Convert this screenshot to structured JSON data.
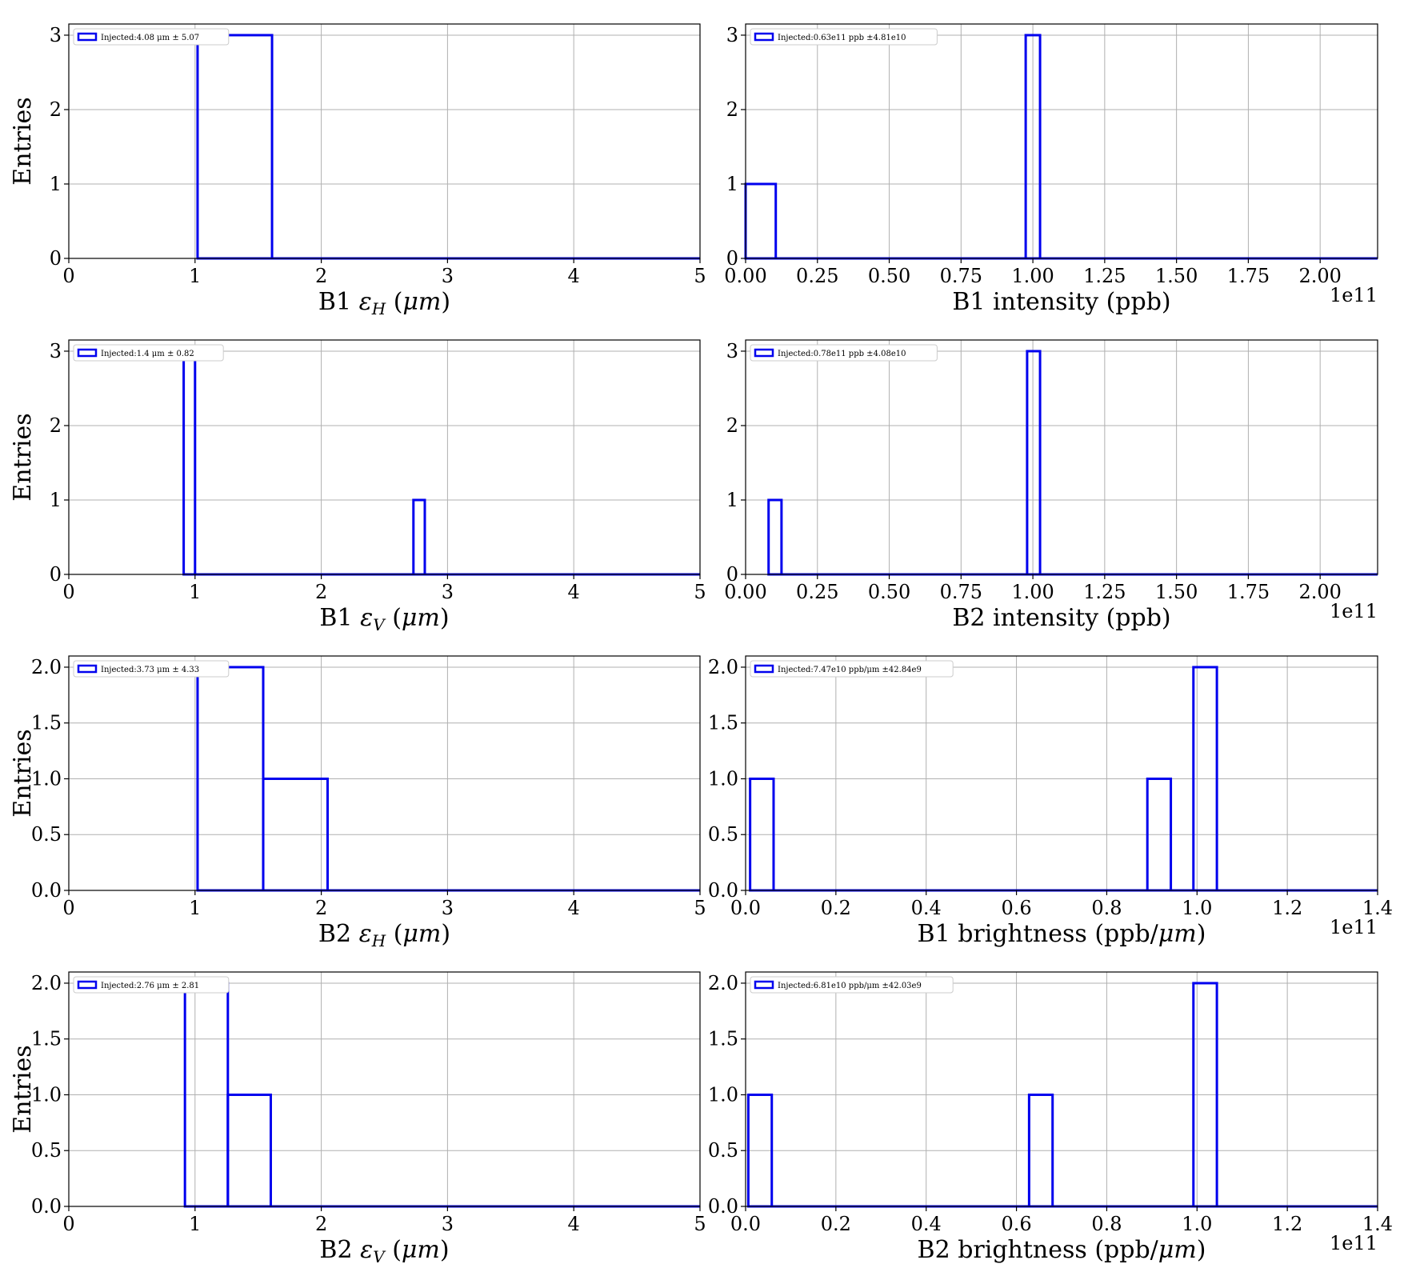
{
  "figure": {
    "colors": {
      "series": "#0000ee",
      "grid": "#b0b0b0",
      "axis": "#000000"
    },
    "grid": true,
    "legend_placement": "upper-left"
  },
  "chart_data": [
    {
      "type": "bar",
      "histogram": true,
      "xlabel": "B1 εH (μm)",
      "xlabel_parts": {
        "pre": "B1 ",
        "sym": "ε",
        "sub": "H",
        "post": " (",
        "unit": "μm",
        "close": ")"
      },
      "ylabel": "Entries",
      "xlim": [
        0,
        5
      ],
      "ylim": [
        0,
        3.15
      ],
      "xticks": [
        0,
        1,
        2,
        3,
        4,
        5
      ],
      "xtick_labels": [
        "0",
        "1",
        "2",
        "3",
        "4",
        "5"
      ],
      "yticks": [
        0,
        1,
        2,
        3
      ],
      "ytick_labels": [
        "0",
        "1",
        "2",
        "3"
      ],
      "offset_text": "",
      "legend": "Injected:4.08 μm ± 5.07",
      "bins": [
        {
          "start": 1.02,
          "end": 1.61,
          "value": 3
        }
      ]
    },
    {
      "type": "bar",
      "histogram": true,
      "xlabel": "B1 intensity (ppb)",
      "ylabel": "",
      "xlim": [
        0,
        2.2
      ],
      "ylim": [
        0,
        3.15
      ],
      "xticks": [
        0,
        0.25,
        0.5,
        0.75,
        1.0,
        1.25,
        1.5,
        1.75,
        2.0
      ],
      "xtick_labels": [
        "0.00",
        "0.25",
        "0.50",
        "0.75",
        "1.00",
        "1.25",
        "1.50",
        "1.75",
        "2.00"
      ],
      "yticks": [
        0,
        1,
        2,
        3
      ],
      "ytick_labels": [
        "0",
        "1",
        "2",
        "3"
      ],
      "offset_text": "1e11",
      "legend": "Injected:0.63e11 ppb ±4.81e10",
      "bins": [
        {
          "start": 0.0,
          "end": 0.105,
          "value": 1
        },
        {
          "start": 0.975,
          "end": 1.025,
          "value": 3
        }
      ]
    },
    {
      "type": "bar",
      "histogram": true,
      "xlabel": "B1 εV (μm)",
      "xlabel_parts": {
        "pre": "B1 ",
        "sym": "ε",
        "sub": "V",
        "post": " (",
        "unit": "μm",
        "close": ")"
      },
      "ylabel": "Entries",
      "xlim": [
        0,
        5
      ],
      "ylim": [
        0,
        3.15
      ],
      "xticks": [
        0,
        1,
        2,
        3,
        4,
        5
      ],
      "xtick_labels": [
        "0",
        "1",
        "2",
        "3",
        "4",
        "5"
      ],
      "yticks": [
        0,
        1,
        2,
        3
      ],
      "ytick_labels": [
        "0",
        "1",
        "2",
        "3"
      ],
      "offset_text": "",
      "legend": "Injected:1.4 μm ± 0.82",
      "bins": [
        {
          "start": 0.91,
          "end": 1.0,
          "value": 3
        },
        {
          "start": 2.73,
          "end": 2.82,
          "value": 1
        }
      ]
    },
    {
      "type": "bar",
      "histogram": true,
      "xlabel": "B2 intensity (ppb)",
      "ylabel": "",
      "xlim": [
        0,
        2.2
      ],
      "ylim": [
        0,
        3.15
      ],
      "xticks": [
        0,
        0.25,
        0.5,
        0.75,
        1.0,
        1.25,
        1.5,
        1.75,
        2.0
      ],
      "xtick_labels": [
        "0.00",
        "0.25",
        "0.50",
        "0.75",
        "1.00",
        "1.25",
        "1.50",
        "1.75",
        "2.00"
      ],
      "yticks": [
        0,
        1,
        2,
        3
      ],
      "ytick_labels": [
        "0",
        "1",
        "2",
        "3"
      ],
      "offset_text": "1e11",
      "legend": "Injected:0.78e11 ppb ±4.08e10",
      "bins": [
        {
          "start": 0.08,
          "end": 0.125,
          "value": 1
        },
        {
          "start": 0.98,
          "end": 1.025,
          "value": 3
        }
      ]
    },
    {
      "type": "bar",
      "histogram": true,
      "xlabel": "B2 εH (μm)",
      "xlabel_parts": {
        "pre": "B2 ",
        "sym": "ε",
        "sub": "H",
        "post": " (",
        "unit": "μm",
        "close": ")"
      },
      "ylabel": "Entries",
      "xlim": [
        0,
        5
      ],
      "ylim": [
        0,
        2.1
      ],
      "xticks": [
        0,
        1,
        2,
        3,
        4,
        5
      ],
      "xtick_labels": [
        "0",
        "1",
        "2",
        "3",
        "4",
        "5"
      ],
      "yticks": [
        0,
        0.5,
        1.0,
        1.5,
        2.0
      ],
      "ytick_labels": [
        "0.0",
        "0.5",
        "1.0",
        "1.5",
        "2.0"
      ],
      "offset_text": "",
      "legend": "Injected:3.73 μm ± 4.33",
      "bins": [
        {
          "start": 1.02,
          "end": 1.54,
          "value": 2
        },
        {
          "start": 1.54,
          "end": 2.05,
          "value": 1
        }
      ]
    },
    {
      "type": "bar",
      "histogram": true,
      "xlabel": "B1 brightness (ppb/μm)",
      "xlabel_parts": {
        "pre": "B1 brightness (ppb/",
        "sym": "",
        "sub": "",
        "post": "",
        "unit": "μm",
        "close": ")"
      },
      "ylabel": "",
      "xlim": [
        0,
        1.4
      ],
      "ylim": [
        0,
        2.1
      ],
      "xticks": [
        0,
        0.2,
        0.4,
        0.6,
        0.8,
        1.0,
        1.2,
        1.4
      ],
      "xtick_labels": [
        "0.0",
        "0.2",
        "0.4",
        "0.6",
        "0.8",
        "1.0",
        "1.2",
        "1.4"
      ],
      "yticks": [
        0,
        0.5,
        1.0,
        1.5,
        2.0
      ],
      "ytick_labels": [
        "0.0",
        "0.5",
        "1.0",
        "1.5",
        "2.0"
      ],
      "offset_text": "1e11",
      "legend": "Injected:7.47e10 ppb/μm ±42.84e9",
      "bins": [
        {
          "start": 0.01,
          "end": 0.062,
          "value": 1
        },
        {
          "start": 0.89,
          "end": 0.942,
          "value": 1
        },
        {
          "start": 0.992,
          "end": 1.044,
          "value": 2
        }
      ]
    },
    {
      "type": "bar",
      "histogram": true,
      "xlabel": "B2 εV (μm)",
      "xlabel_parts": {
        "pre": "B2 ",
        "sym": "ε",
        "sub": "V",
        "post": " (",
        "unit": "μm",
        "close": ")"
      },
      "ylabel": "Entries",
      "xlim": [
        0,
        5
      ],
      "ylim": [
        0,
        2.1
      ],
      "xticks": [
        0,
        1,
        2,
        3,
        4,
        5
      ],
      "xtick_labels": [
        "0",
        "1",
        "2",
        "3",
        "4",
        "5"
      ],
      "yticks": [
        0,
        0.5,
        1.0,
        1.5,
        2.0
      ],
      "ytick_labels": [
        "0.0",
        "0.5",
        "1.0",
        "1.5",
        "2.0"
      ],
      "offset_text": "",
      "legend": "Injected:2.76 μm ± 2.81",
      "bins": [
        {
          "start": 0.92,
          "end": 1.26,
          "value": 2
        },
        {
          "start": 1.26,
          "end": 1.6,
          "value": 1
        }
      ]
    },
    {
      "type": "bar",
      "histogram": true,
      "xlabel": "B2 brightness (ppb/μm)",
      "xlabel_parts": {
        "pre": "B2 brightness (ppb/",
        "sym": "",
        "sub": "",
        "post": "",
        "unit": "μm",
        "close": ")"
      },
      "ylabel": "",
      "xlim": [
        0,
        1.4
      ],
      "ylim": [
        0,
        2.1
      ],
      "xticks": [
        0,
        0.2,
        0.4,
        0.6,
        0.8,
        1.0,
        1.2,
        1.4
      ],
      "xtick_labels": [
        "0.0",
        "0.2",
        "0.4",
        "0.6",
        "0.8",
        "1.0",
        "1.2",
        "1.4"
      ],
      "yticks": [
        0,
        0.5,
        1.0,
        1.5,
        2.0
      ],
      "ytick_labels": [
        "0.0",
        "0.5",
        "1.0",
        "1.5",
        "2.0"
      ],
      "offset_text": "1e11",
      "legend": "Injected:6.81e10 ppb/μm ±42.03e9",
      "bins": [
        {
          "start": 0.006,
          "end": 0.058,
          "value": 1
        },
        {
          "start": 0.628,
          "end": 0.68,
          "value": 1
        },
        {
          "start": 0.992,
          "end": 1.044,
          "value": 2
        }
      ]
    }
  ]
}
